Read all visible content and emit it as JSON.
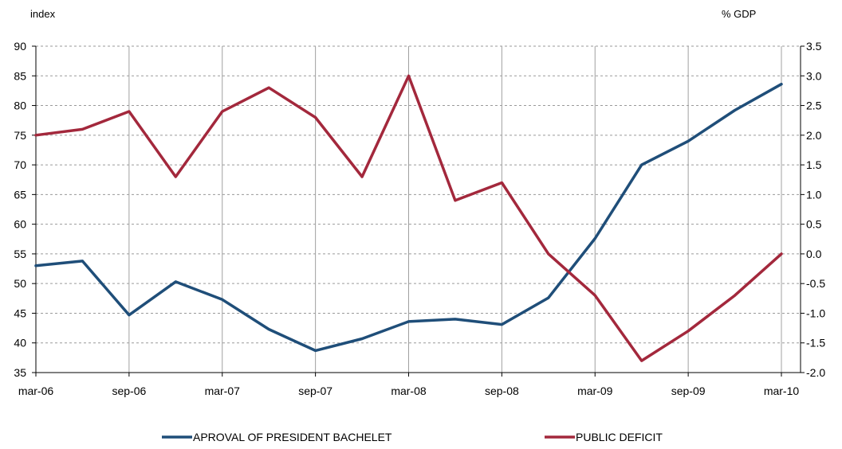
{
  "chart_data": {
    "type": "line",
    "x": [
      "mar-06",
      "jun-06",
      "sep-06",
      "dec-06",
      "mar-07",
      "jun-07",
      "sep-07",
      "dec-07",
      "mar-08",
      "jun-08",
      "sep-08",
      "dec-08",
      "mar-09",
      "jun-09",
      "sep-09",
      "dec-09",
      "mar-10"
    ],
    "x_tick_labels": [
      "mar-06",
      "sep-06",
      "mar-07",
      "sep-07",
      "mar-08",
      "sep-08",
      "mar-09",
      "sep-09",
      "mar-10"
    ],
    "y_left": {
      "label": "index",
      "ylim": [
        35,
        90
      ],
      "ticks": [
        35,
        40,
        45,
        50,
        55,
        60,
        65,
        70,
        75,
        80,
        85,
        90
      ],
      "tick_labels": [
        "35",
        "40",
        "45",
        "50",
        "55",
        "60",
        "65",
        "70",
        "75",
        "80",
        "85",
        "90"
      ]
    },
    "y_right": {
      "label": "% GDP",
      "ylim": [
        -2.0,
        3.5
      ],
      "ticks": [
        -2.0,
        -1.5,
        -1.0,
        -0.5,
        0.0,
        0.5,
        1.0,
        1.5,
        2.0,
        2.5,
        3.0,
        3.5
      ],
      "tick_labels": [
        "-2.0",
        "-1.5",
        "-1.0",
        "-0.5",
        "0.0",
        "0.5",
        "1.0",
        "1.5",
        "2.0",
        "2.5",
        "3.0",
        "3.5"
      ]
    },
    "series": [
      {
        "name": "APROVAL OF PRESIDENT  BACHELET",
        "axis": "left",
        "color": "#1f4e79",
        "values": [
          53,
          53.8,
          44.7,
          50.3,
          47.3,
          42.3,
          38.7,
          40.7,
          43.6,
          44,
          43.1,
          47.6,
          57.6,
          70,
          74,
          79.2,
          83.6
        ]
      },
      {
        "name": "PUBLIC DEFICIT",
        "axis": "right",
        "color": "#a3283c",
        "values": [
          2.0,
          2.1,
          2.4,
          1.3,
          2.4,
          2.8,
          2.3,
          1.3,
          3.0,
          0.9,
          1.2,
          0.0,
          -0.7,
          -1.8,
          -1.3,
          -0.7,
          0.0
        ]
      }
    ],
    "grid": true,
    "legend": "bottom"
  }
}
